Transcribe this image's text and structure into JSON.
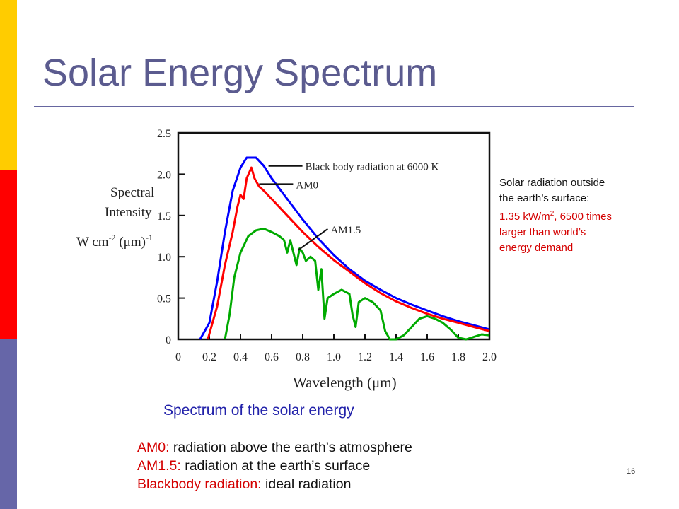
{
  "slide": {
    "title": "Solar Energy Spectrum",
    "caption": "Spectrum of the solar energy",
    "number": "16",
    "side_note": {
      "line1": "Solar radiation outside",
      "line2": "the earth’s surface:",
      "value_prefix": "1.35 kW/m",
      "value_sup": "2",
      "value_suffix": ", 6500 times",
      "line4": "larger than world’s",
      "line5": "energy demand"
    },
    "notes": [
      {
        "key": "AM0:",
        "text": " radiation above the earth’s atmosphere"
      },
      {
        "key": "AM1.5:",
        "text": " radiation at the earth’s surface"
      },
      {
        "key": "Blackbody radiation:",
        "text": " ideal radiation"
      }
    ]
  },
  "chart_data": {
    "type": "line",
    "xlabel": "Wavelength (μm)",
    "ylabel_lines": [
      "Spectral",
      "Intensity"
    ],
    "ylabel_unit": {
      "base": "W cm",
      "exp1": "-2",
      "mid": " (μm)",
      "exp2": "-1"
    },
    "xlim": [
      0,
      2.0
    ],
    "ylim": [
      0,
      2.5
    ],
    "x_ticks": [
      "0",
      "0.2",
      "0.4",
      "0.6",
      "0.8",
      "1.0",
      "1.2",
      "1.4",
      "1.6",
      "1.8",
      "2.0"
    ],
    "y_ticks": [
      "0",
      "0.5",
      "1.0",
      "1.5",
      "2.0",
      "2.5"
    ],
    "grid": false,
    "series": [
      {
        "name": "Black body radiation at 6000 K",
        "color": "#0000ff",
        "points": [
          [
            0.14,
            0
          ],
          [
            0.2,
            0.2
          ],
          [
            0.25,
            0.7
          ],
          [
            0.3,
            1.3
          ],
          [
            0.35,
            1.8
          ],
          [
            0.4,
            2.08
          ],
          [
            0.44,
            2.2
          ],
          [
            0.5,
            2.2
          ],
          [
            0.55,
            2.1
          ],
          [
            0.6,
            1.95
          ],
          [
            0.7,
            1.7
          ],
          [
            0.8,
            1.45
          ],
          [
            0.9,
            1.22
          ],
          [
            1.0,
            1.02
          ],
          [
            1.1,
            0.85
          ],
          [
            1.2,
            0.71
          ],
          [
            1.3,
            0.6
          ],
          [
            1.4,
            0.5
          ],
          [
            1.5,
            0.42
          ],
          [
            1.6,
            0.35
          ],
          [
            1.7,
            0.28
          ],
          [
            1.8,
            0.22
          ],
          [
            1.9,
            0.17
          ],
          [
            2.0,
            0.12
          ]
        ]
      },
      {
        "name": "AM0",
        "color": "#ff0000",
        "points": [
          [
            0.19,
            0
          ],
          [
            0.25,
            0.4
          ],
          [
            0.3,
            0.9
          ],
          [
            0.35,
            1.3
          ],
          [
            0.38,
            1.6
          ],
          [
            0.4,
            1.75
          ],
          [
            0.42,
            1.7
          ],
          [
            0.44,
            1.95
          ],
          [
            0.47,
            2.08
          ],
          [
            0.49,
            1.95
          ],
          [
            0.52,
            1.85
          ],
          [
            0.55,
            1.8
          ],
          [
            0.6,
            1.7
          ],
          [
            0.7,
            1.5
          ],
          [
            0.8,
            1.3
          ],
          [
            0.9,
            1.12
          ],
          [
            1.0,
            0.96
          ],
          [
            1.1,
            0.82
          ],
          [
            1.2,
            0.68
          ],
          [
            1.3,
            0.56
          ],
          [
            1.4,
            0.46
          ],
          [
            1.5,
            0.38
          ],
          [
            1.6,
            0.31
          ],
          [
            1.7,
            0.25
          ],
          [
            1.8,
            0.2
          ],
          [
            1.9,
            0.15
          ],
          [
            2.0,
            0.1
          ]
        ]
      },
      {
        "name": "AM1.5",
        "color": "#00aa00",
        "points": [
          [
            0.3,
            0
          ],
          [
            0.33,
            0.3
          ],
          [
            0.36,
            0.75
          ],
          [
            0.4,
            1.05
          ],
          [
            0.45,
            1.25
          ],
          [
            0.5,
            1.32
          ],
          [
            0.55,
            1.34
          ],
          [
            0.6,
            1.3
          ],
          [
            0.65,
            1.25
          ],
          [
            0.68,
            1.2
          ],
          [
            0.7,
            1.05
          ],
          [
            0.72,
            1.2
          ],
          [
            0.76,
            0.9
          ],
          [
            0.78,
            1.1
          ],
          [
            0.8,
            1.05
          ],
          [
            0.82,
            0.95
          ],
          [
            0.85,
            1.0
          ],
          [
            0.88,
            0.95
          ],
          [
            0.9,
            0.6
          ],
          [
            0.92,
            0.85
          ],
          [
            0.94,
            0.25
          ],
          [
            0.96,
            0.5
          ],
          [
            1.0,
            0.55
          ],
          [
            1.05,
            0.6
          ],
          [
            1.1,
            0.55
          ],
          [
            1.12,
            0.3
          ],
          [
            1.14,
            0.15
          ],
          [
            1.16,
            0.45
          ],
          [
            1.2,
            0.5
          ],
          [
            1.25,
            0.45
          ],
          [
            1.3,
            0.35
          ],
          [
            1.33,
            0.1
          ],
          [
            1.36,
            0.0
          ],
          [
            1.4,
            0.0
          ],
          [
            1.45,
            0.05
          ],
          [
            1.5,
            0.15
          ],
          [
            1.55,
            0.25
          ],
          [
            1.6,
            0.28
          ],
          [
            1.65,
            0.25
          ],
          [
            1.7,
            0.2
          ],
          [
            1.75,
            0.12
          ],
          [
            1.8,
            0.02
          ],
          [
            1.85,
            0.0
          ],
          [
            1.9,
            0.03
          ],
          [
            1.95,
            0.06
          ],
          [
            2.0,
            0.05
          ]
        ]
      }
    ],
    "legend_labels": [
      {
        "text": "Black body radiation at 6000 K",
        "anchor": [
          0.58,
          2.1
        ]
      },
      {
        "text": "AM0",
        "anchor": [
          0.52,
          1.88
        ]
      },
      {
        "text": "AM1.5",
        "anchor": [
          0.77,
          1.08
        ]
      }
    ]
  }
}
